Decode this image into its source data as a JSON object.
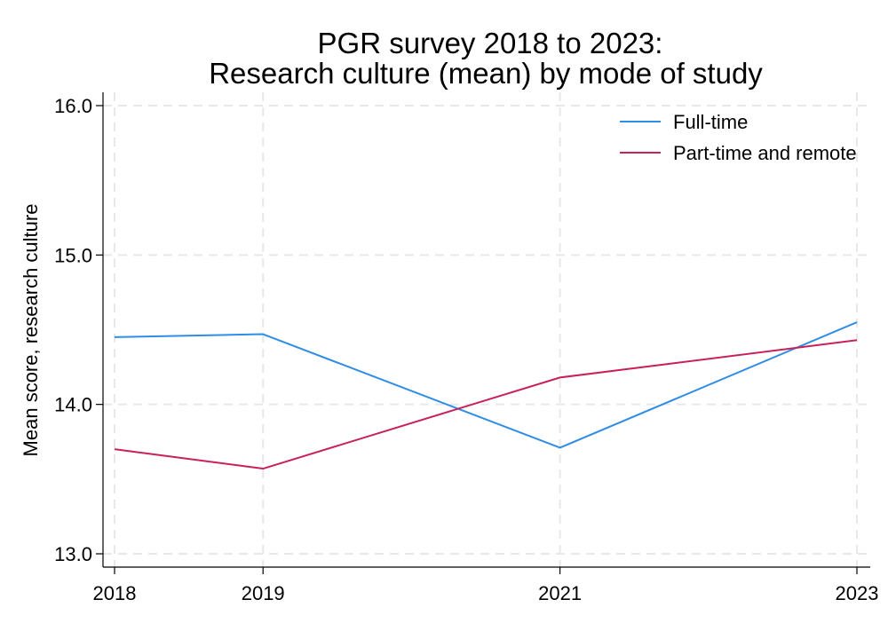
{
  "chart_data": {
    "type": "line",
    "title": [
      "PGR survey 2018 to 2023:",
      "Research culture (mean) by mode of study"
    ],
    "xlabel": "",
    "ylabel": "Mean score, research culture",
    "x": [
      2018,
      2019,
      2021,
      2023
    ],
    "x_tick_labels": [
      "2018",
      "2019",
      "2021",
      "2023"
    ],
    "xlim": [
      2018,
      2023
    ],
    "ylim": [
      13.0,
      16.0
    ],
    "y_ticks": [
      13.0,
      14.0,
      15.0,
      16.0
    ],
    "y_tick_labels": [
      "13.0",
      "14.0",
      "15.0",
      "16.0"
    ],
    "grid": true,
    "legend_position": "top-right",
    "series": [
      {
        "name": "Full-time",
        "color": "#2f8de6",
        "values": [
          14.45,
          14.47,
          13.71,
          14.55
        ]
      },
      {
        "name": "Part-time and remote",
        "color": "#c8215a",
        "values": [
          13.7,
          13.57,
          14.18,
          14.43
        ]
      }
    ]
  }
}
